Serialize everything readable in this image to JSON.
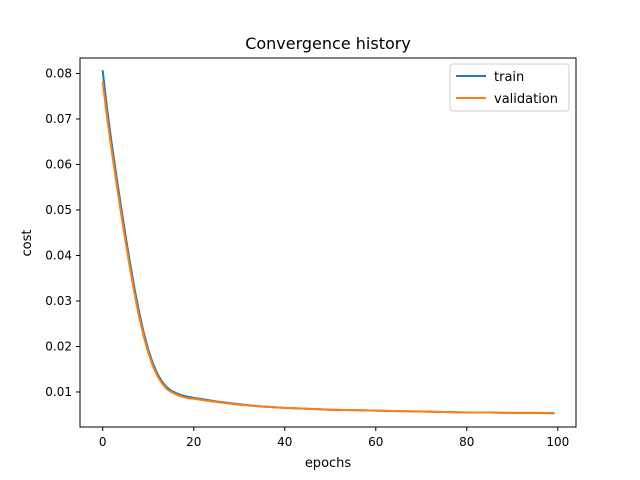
{
  "chart_data": {
    "type": "line",
    "title": "Convergence history",
    "xlabel": "epochs",
    "ylabel": "cost",
    "xlim": [
      -5,
      104
    ],
    "ylim": [
      0.0023,
      0.0834
    ],
    "xticks": [
      0,
      20,
      40,
      60,
      80,
      100
    ],
    "yticks": [
      0.01,
      0.02,
      0.03,
      0.04,
      0.05,
      0.06,
      0.07,
      0.08
    ],
    "xtick_labels": [
      "0",
      "20",
      "40",
      "60",
      "80",
      "100"
    ],
    "ytick_labels": [
      "0.01",
      "0.02",
      "0.03",
      "0.04",
      "0.05",
      "0.06",
      "0.07",
      "0.08"
    ],
    "grid": false,
    "legend_position": "top-right",
    "x": [
      0,
      1,
      2,
      3,
      4,
      5,
      6,
      7,
      8,
      9,
      10,
      11,
      12,
      13,
      14,
      15,
      16,
      17,
      18,
      19,
      20,
      22,
      25,
      30,
      35,
      40,
      45,
      50,
      55,
      60,
      65,
      70,
      75,
      80,
      85,
      90,
      95,
      99
    ],
    "series": [
      {
        "name": "train",
        "color": "#1f77b4",
        "values": [
          0.0805,
          0.0718,
          0.0644,
          0.0575,
          0.0508,
          0.0444,
          0.0383,
          0.0326,
          0.0275,
          0.023,
          0.0193,
          0.0163,
          0.014,
          0.0123,
          0.0111,
          0.0103,
          0.0098,
          0.0094,
          0.0091,
          0.0089,
          0.0087,
          0.0084,
          0.0079,
          0.0073,
          0.0068,
          0.0065,
          0.0063,
          0.0061,
          0.006,
          0.0059,
          0.0058,
          0.0057,
          0.0056,
          0.0055,
          0.0055,
          0.0054,
          0.0054,
          0.0053
        ]
      },
      {
        "name": "validation",
        "color": "#ff7f0e",
        "values": [
          0.078,
          0.07,
          0.0628,
          0.056,
          0.0494,
          0.0431,
          0.0371,
          0.0315,
          0.0265,
          0.0222,
          0.0186,
          0.0157,
          0.0135,
          0.0119,
          0.0107,
          0.01,
          0.0095,
          0.0091,
          0.0088,
          0.0086,
          0.0085,
          0.0082,
          0.0078,
          0.0072,
          0.0068,
          0.0065,
          0.0063,
          0.0061,
          0.006,
          0.0059,
          0.0058,
          0.0057,
          0.0056,
          0.0055,
          0.0055,
          0.0054,
          0.0054,
          0.0054
        ]
      }
    ]
  }
}
